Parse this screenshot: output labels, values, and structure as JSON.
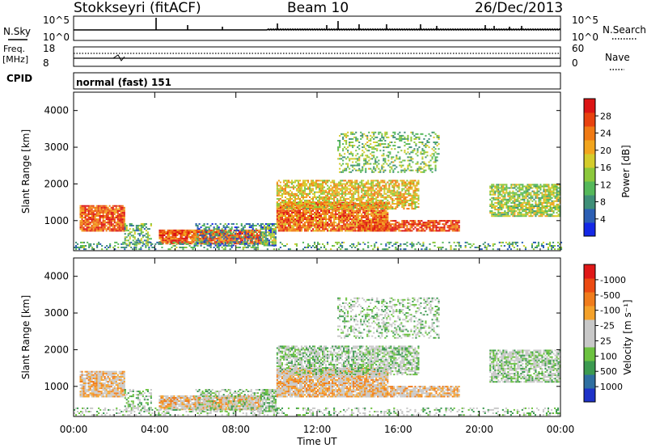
{
  "header": {
    "station": "Stokkseyri (fitACF)",
    "beam": "Beam 10",
    "date": "26/Dec/2013"
  },
  "panels": {
    "nsky": {
      "label": "N.Sky",
      "ticks_left": [
        "10^5",
        "10^0"
      ],
      "ticks_right": [
        "10^5",
        "10^0"
      ],
      "right_label": "N.Search"
    },
    "freq": {
      "label_top": "Freq.",
      "label_bottom": "[MHz]",
      "ticks_left": [
        "18",
        "8"
      ],
      "ticks_right": [
        "60",
        "0"
      ],
      "right_label": "Nave",
      "cpid_label": "CPID",
      "mode_text": "normal (fast) 151"
    }
  },
  "chart_data": [
    {
      "type": "heatmap",
      "title": "",
      "xlabel": "",
      "ylabel": "Slant Range [km]",
      "ylim": [
        180,
        4500
      ],
      "y_ticks": [
        "1000",
        "2000",
        "3000",
        "4000"
      ],
      "x_ticks": [
        "00:00",
        "04:00",
        "08:00",
        "12:00",
        "16:00",
        "20:00",
        "00:00"
      ],
      "colorbar": {
        "label": "Power [dB]",
        "ticks": [
          "4",
          "8",
          "12",
          "16",
          "20",
          "24",
          "28"
        ],
        "colors": [
          "#1428e6",
          "#2c5fb4",
          "#3f8f78",
          "#55b85a",
          "#8cc83c",
          "#d4cc2c",
          "#f2a51e",
          "#f07a14",
          "#e8420f",
          "#dc1414"
        ]
      }
    },
    {
      "type": "heatmap",
      "title": "",
      "xlabel": "Time UT",
      "ylabel": "Slant Range [km]",
      "ylim": [
        180,
        4500
      ],
      "y_ticks": [
        "1000",
        "2000",
        "3000",
        "4000"
      ],
      "x_ticks": [
        "00:00",
        "04:00",
        "08:00",
        "12:00",
        "16:00",
        "20:00",
        "00:00"
      ],
      "colorbar": {
        "label": "Velocity [m s⁻¹]",
        "ticks": [
          "1000",
          "500",
          "100",
          "25",
          "-25",
          "-100",
          "-500",
          "-1000"
        ],
        "colors": [
          "#1e32c8",
          "#2f6fa0",
          "#3c9a50",
          "#6cc240",
          "#c8c8c8",
          "#c8c8c8",
          "#f4a12a",
          "#f07c1c",
          "#ec4a12",
          "#e01818"
        ]
      }
    }
  ]
}
